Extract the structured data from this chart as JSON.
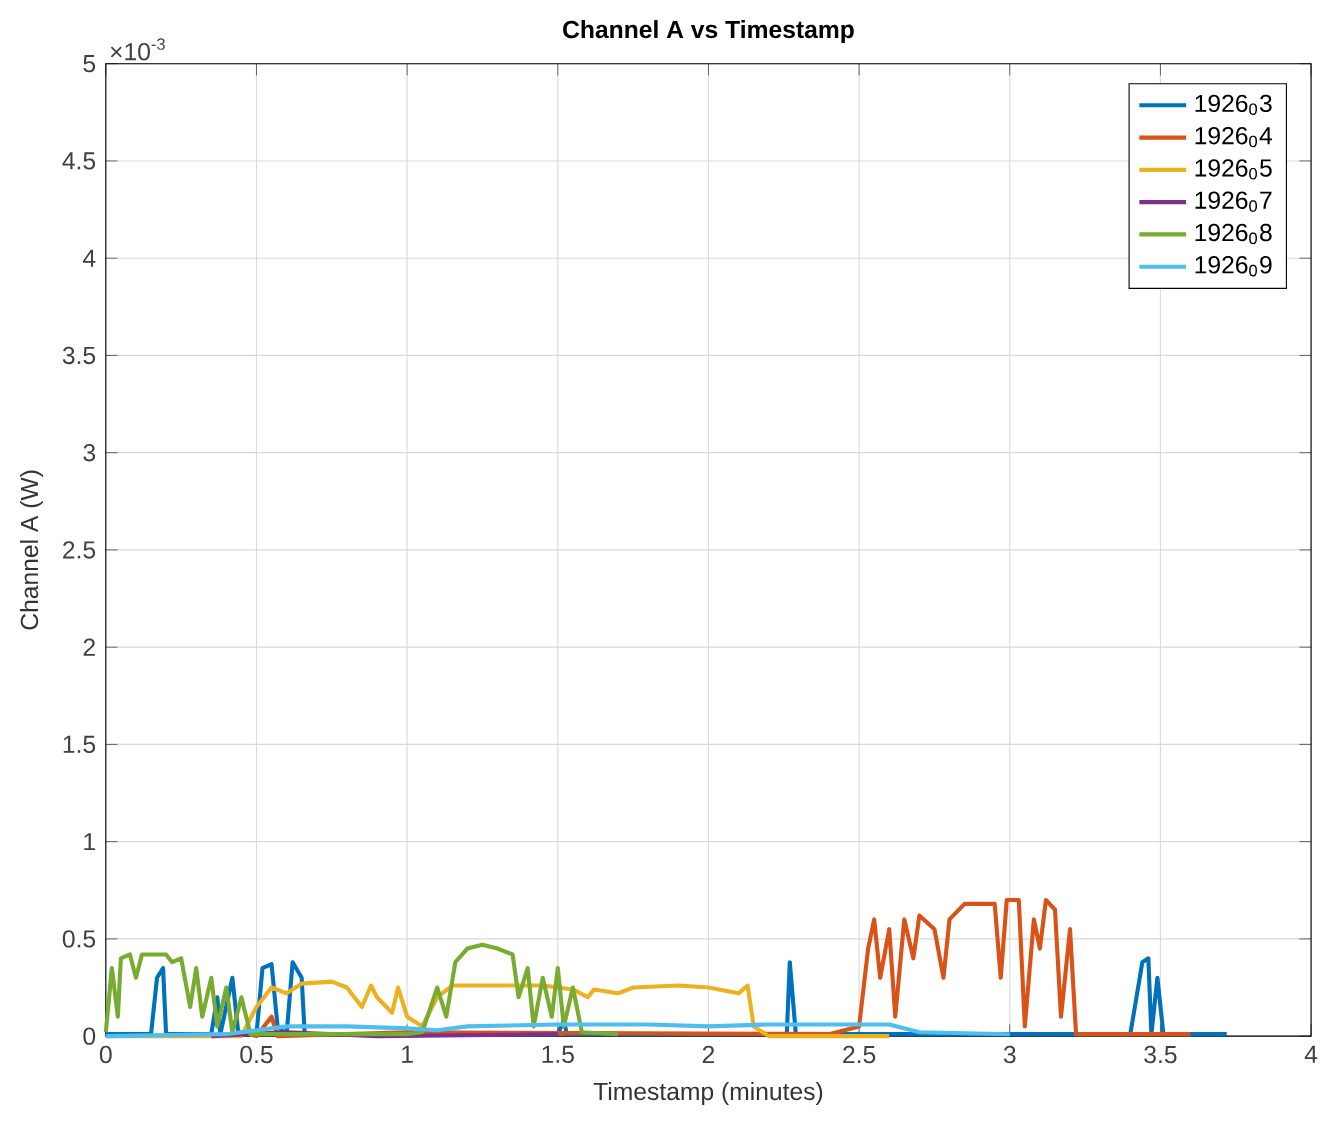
{
  "chart_data": {
    "type": "line",
    "title": "Channel A vs Timestamp",
    "xlabel": "Timestamp (minutes)",
    "ylabel": "Channel A (W)",
    "annotations": [
      "×10$^{-3}$"
    ],
    "xlim": [
      0,
      4
    ],
    "ylim": [
      0,
      5
    ],
    "xticks": [
      0,
      0.5,
      1,
      1.5,
      2,
      2.5,
      3,
      3.5,
      4
    ],
    "yticks": [
      0,
      0.5,
      1,
      1.5,
      2,
      2.5,
      3,
      3.5,
      4,
      4.5,
      5
    ],
    "grid": true,
    "legend": "top right",
    "line_style": "solid",
    "marker": "none",
    "series": [
      {
        "name": "1926$_{0}$3",
        "color": "#0072bd",
        "x": [
          0,
          0.15,
          0.17,
          0.19,
          0.2,
          0.35,
          0.37,
          0.38,
          0.42,
          0.44,
          0.5,
          0.52,
          0.55,
          0.57,
          0.6,
          0.62,
          0.65,
          0.66,
          1.5,
          1.52,
          1.53,
          2.26,
          2.27,
          2.29,
          2.6,
          3.4,
          3.44,
          3.46,
          3.47,
          3.49,
          3.51,
          3.72
        ],
        "values": [
          0.01,
          0.01,
          0.3,
          0.35,
          0.01,
          0.01,
          0.2,
          0.01,
          0.3,
          0.01,
          0.01,
          0.35,
          0.37,
          0.05,
          0.01,
          0.38,
          0.3,
          0.01,
          0.01,
          0.08,
          0.01,
          0.01,
          0.38,
          0.01,
          0.01,
          0.01,
          0.38,
          0.4,
          0.01,
          0.3,
          0.01,
          0.01
        ]
      },
      {
        "name": "1926$_{0}$4",
        "color": "#d95319",
        "x": [
          0.4,
          0.45,
          0.5,
          0.55,
          0.57,
          1.0,
          2.4,
          2.5,
          2.53,
          2.55,
          2.57,
          2.6,
          2.62,
          2.65,
          2.68,
          2.7,
          2.75,
          2.78,
          2.8,
          2.85,
          2.9,
          2.95,
          2.97,
          2.99,
          3.03,
          3.05,
          3.08,
          3.1,
          3.12,
          3.15,
          3.17,
          3.2,
          3.22,
          3.6
        ],
        "values": [
          0,
          0.02,
          0,
          0.1,
          0,
          0.02,
          0.01,
          0.05,
          0.45,
          0.6,
          0.3,
          0.55,
          0.1,
          0.6,
          0.4,
          0.62,
          0.55,
          0.3,
          0.6,
          0.68,
          0.68,
          0.68,
          0.3,
          0.7,
          0.7,
          0.05,
          0.6,
          0.45,
          0.7,
          0.65,
          0.1,
          0.55,
          0.01,
          0.01
        ]
      },
      {
        "name": "1926$_{0}$5",
        "color": "#edb120",
        "x": [
          0,
          0.45,
          0.5,
          0.55,
          0.6,
          0.65,
          0.75,
          0.8,
          0.85,
          0.88,
          0.9,
          0.95,
          0.97,
          1.0,
          1.05,
          1.1,
          1.15,
          1.3,
          1.45,
          1.55,
          1.6,
          1.62,
          1.7,
          1.75,
          1.9,
          2.0,
          2.1,
          2.13,
          2.15,
          2.2,
          2.6
        ],
        "values": [
          0,
          0,
          0.15,
          0.25,
          0.22,
          0.27,
          0.28,
          0.25,
          0.15,
          0.26,
          0.2,
          0.12,
          0.25,
          0.1,
          0.05,
          0.2,
          0.26,
          0.26,
          0.26,
          0.24,
          0.2,
          0.24,
          0.22,
          0.25,
          0.26,
          0.25,
          0.22,
          0.26,
          0.05,
          0,
          0
        ]
      },
      {
        "name": "1926$_{0}$7",
        "color": "#7e2f8e",
        "x": [
          0.35,
          0.6,
          0.9,
          1.5
        ],
        "values": [
          0,
          0.02,
          0,
          0.01
        ]
      },
      {
        "name": "1926$_{0}$8",
        "color": "#77ac30",
        "x": [
          0,
          0.02,
          0.04,
          0.05,
          0.08,
          0.1,
          0.12,
          0.2,
          0.22,
          0.25,
          0.28,
          0.3,
          0.32,
          0.35,
          0.37,
          0.4,
          0.42,
          0.45,
          0.48,
          0.55,
          0.7,
          1.0,
          1.05,
          1.1,
          1.13,
          1.16,
          1.2,
          1.25,
          1.3,
          1.35,
          1.37,
          1.4,
          1.42,
          1.45,
          1.48,
          1.5,
          1.52,
          1.55,
          1.58,
          1.7
        ],
        "values": [
          0.02,
          0.35,
          0.1,
          0.4,
          0.42,
          0.3,
          0.42,
          0.42,
          0.38,
          0.4,
          0.15,
          0.35,
          0.1,
          0.3,
          0.05,
          0.25,
          0.02,
          0.2,
          0.01,
          0.01,
          0.01,
          0.01,
          0.02,
          0.25,
          0.1,
          0.38,
          0.45,
          0.47,
          0.45,
          0.42,
          0.2,
          0.35,
          0.05,
          0.3,
          0.1,
          0.35,
          0.05,
          0.25,
          0.02,
          0.01
        ]
      },
      {
        "name": "1926$_{0}$9",
        "color": "#4dbeee",
        "x": [
          0,
          0.4,
          0.5,
          0.6,
          0.8,
          1.0,
          1.1,
          1.2,
          1.5,
          1.8,
          2.0,
          2.2,
          2.4,
          2.6,
          2.7,
          3.0
        ],
        "values": [
          0,
          0.01,
          0.03,
          0.05,
          0.05,
          0.04,
          0.03,
          0.05,
          0.06,
          0.06,
          0.05,
          0.06,
          0.06,
          0.06,
          0.02,
          0.01
        ]
      }
    ]
  }
}
